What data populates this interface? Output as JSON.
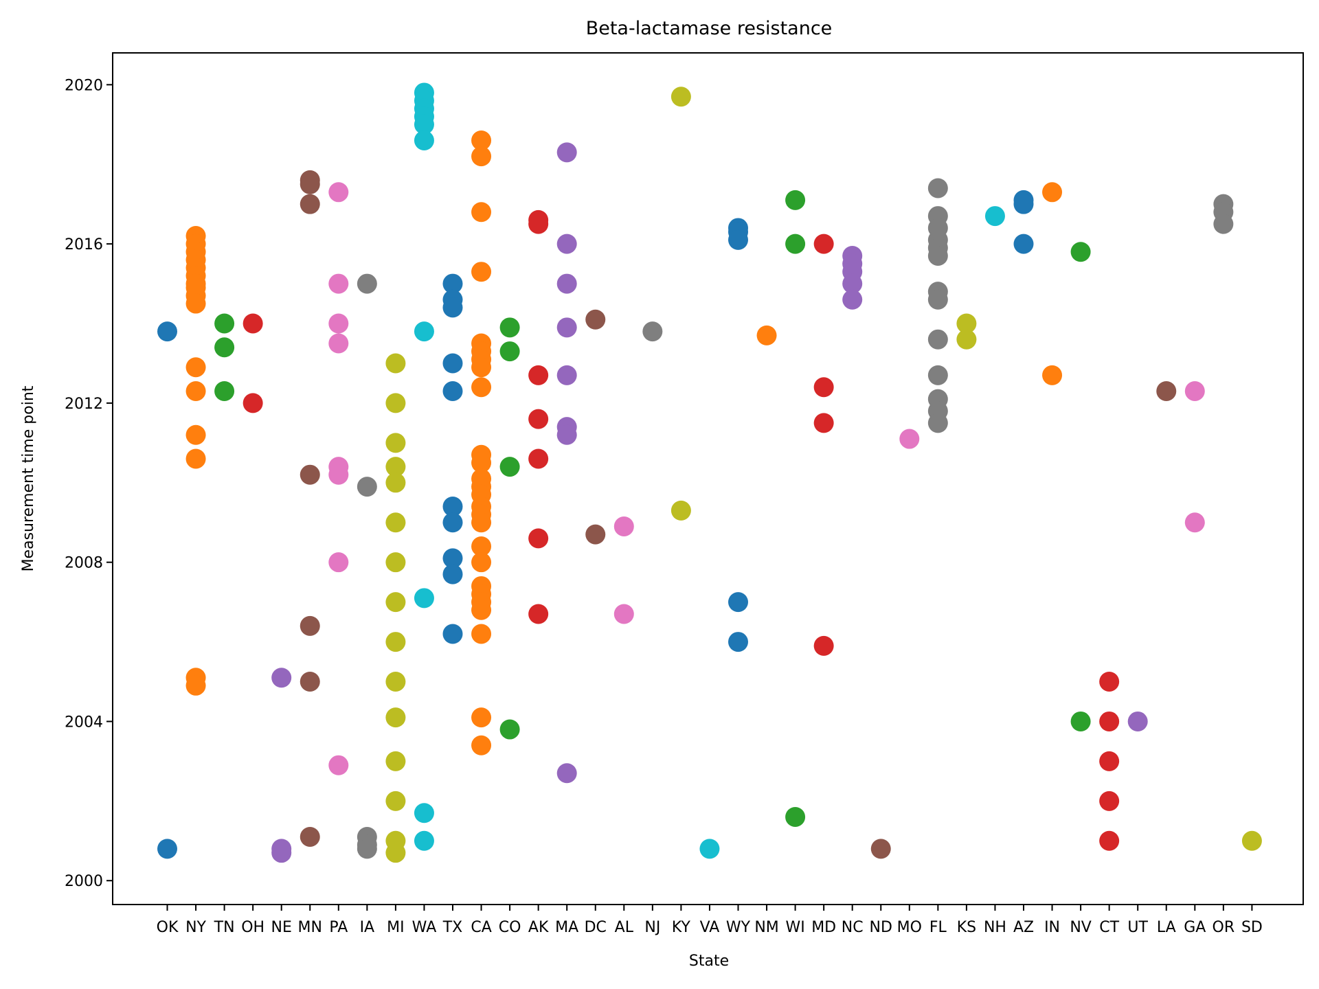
{
  "chart_data": {
    "type": "scatter",
    "title": "Beta-lactamase resistance",
    "xlabel": "State",
    "ylabel": "Measurement time point",
    "ylim": [
      1999.4,
      2020.8
    ],
    "yticks": [
      2000,
      2004,
      2008,
      2012,
      2016,
      2020
    ],
    "grid": false,
    "categories": [
      "OK",
      "NY",
      "TN",
      "OH",
      "NE",
      "MN",
      "PA",
      "IA",
      "MI",
      "WA",
      "TX",
      "CA",
      "CO",
      "AK",
      "MA",
      "DC",
      "AL",
      "NJ",
      "KY",
      "VA",
      "WY",
      "NM",
      "WI",
      "MD",
      "NC",
      "ND",
      "MO",
      "FL",
      "KS",
      "NH",
      "AZ",
      "IN",
      "NV",
      "CT",
      "UT",
      "LA",
      "GA",
      "OR",
      "SD"
    ],
    "colors": [
      "#1f77b4",
      "#ff7f0e",
      "#2ca02c",
      "#d62728",
      "#9467bd",
      "#8c564b",
      "#e377c2",
      "#7f7f7f",
      "#bcbd22",
      "#17becf"
    ],
    "points": {
      "OK": [
        2013.8,
        2000.8
      ],
      "NY": [
        2016.2,
        2016.0,
        2015.8,
        2015.6,
        2015.4,
        2015.2,
        2015.0,
        2014.9,
        2014.7,
        2014.5,
        2012.9,
        2012.3,
        2011.2,
        2010.6,
        2005.1,
        2004.9
      ],
      "TN": [
        2014.0,
        2013.4,
        2012.3
      ],
      "OH": [
        2014.0,
        2012.0
      ],
      "NE": [
        2005.1,
        2000.8,
        2000.7
      ],
      "MN": [
        2017.6,
        2017.5,
        2017.0,
        2010.2,
        2006.4,
        2005.0,
        2001.1
      ],
      "PA": [
        2017.3,
        2015.0,
        2014.0,
        2013.5,
        2010.4,
        2010.2,
        2008.0,
        2002.9
      ],
      "IA": [
        2015.0,
        2009.9,
        2001.1,
        2000.9,
        2000.8
      ],
      "MI": [
        2013.0,
        2012.0,
        2011.0,
        2010.4,
        2010.0,
        2009.0,
        2008.0,
        2007.0,
        2006.0,
        2005.0,
        2004.1,
        2003.0,
        2002.0,
        2001.0,
        2000.7
      ],
      "WA": [
        2019.8,
        2019.6,
        2019.4,
        2019.2,
        2019.0,
        2018.6,
        2013.8,
        2007.1,
        2001.7,
        2001.0
      ],
      "TX": [
        2015.0,
        2014.6,
        2014.4,
        2013.0,
        2012.3,
        2009.4,
        2009.0,
        2008.1,
        2007.7,
        2006.2
      ],
      "CA": [
        2018.6,
        2018.2,
        2016.8,
        2015.3,
        2013.5,
        2013.3,
        2013.1,
        2012.9,
        2012.4,
        2010.7,
        2010.5,
        2010.1,
        2009.9,
        2009.7,
        2009.4,
        2009.2,
        2009.0,
        2008.4,
        2008.0,
        2007.4,
        2007.2,
        2007.0,
        2006.8,
        2006.2,
        2004.1,
        2003.4
      ],
      "CO": [
        2013.9,
        2013.3,
        2010.4,
        2003.8
      ],
      "AK": [
        2016.6,
        2016.5,
        2012.7,
        2011.6,
        2010.6,
        2008.6,
        2006.7
      ],
      "MA": [
        2018.3,
        2016.0,
        2015.0,
        2013.9,
        2012.7,
        2011.4,
        2011.2,
        2002.7
      ],
      "DC": [
        2014.1,
        2008.7
      ],
      "AL": [
        2008.9,
        2006.7
      ],
      "NJ": [
        2013.8
      ],
      "KY": [
        2019.7,
        2009.3
      ],
      "VA": [
        2000.8
      ],
      "WY": [
        2016.4,
        2016.3,
        2016.1,
        2007.0,
        2006.0
      ],
      "NM": [
        2013.7
      ],
      "WI": [
        2017.1,
        2016.0,
        2001.6
      ],
      "MD": [
        2016.0,
        2012.4,
        2011.5,
        2005.9
      ],
      "NC": [
        2015.7,
        2015.5,
        2015.3,
        2015.0,
        2014.6
      ],
      "ND": [
        2000.8
      ],
      "MO": [
        2011.1
      ],
      "FL": [
        2017.4,
        2016.7,
        2016.4,
        2016.1,
        2015.9,
        2015.7,
        2014.8,
        2014.6,
        2013.6,
        2012.7,
        2012.1,
        2011.8,
        2011.5
      ],
      "KS": [
        2014.0,
        2013.6
      ],
      "NH": [
        2016.7
      ],
      "AZ": [
        2017.1,
        2017.0,
        2016.0
      ],
      "IN": [
        2017.3,
        2012.7
      ],
      "NV": [
        2015.8,
        2004.0
      ],
      "CT": [
        2005.0,
        2004.0,
        2003.0,
        2002.0,
        2001.0
      ],
      "UT": [
        2004.0
      ],
      "LA": [
        2012.3
      ],
      "GA": [
        2012.3,
        2009.0
      ],
      "OR": [
        2017.0,
        2016.8,
        2016.5
      ],
      "SD": [
        2001.0
      ]
    }
  }
}
